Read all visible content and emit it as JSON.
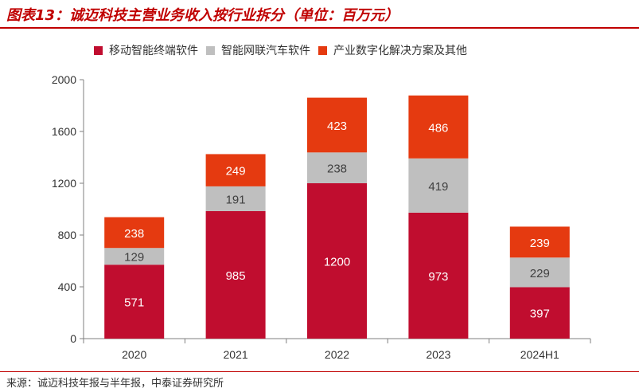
{
  "title": "图表13：诚迈科技主营业务收入按行业拆分（单位：百万元）",
  "source": "来源：诚迈科技年报与半年报，中泰证券研究所",
  "colors": {
    "mobile": "#c00d2f",
    "auto": "#bfbfbf",
    "digital": "#e53a10",
    "accent": "#c00000"
  },
  "chart_data": {
    "type": "bar",
    "stacked": true,
    "categories": [
      "2020",
      "2021",
      "2022",
      "2023",
      "2024H1"
    ],
    "series": [
      {
        "name": "移动智能终端软件",
        "values": [
          571,
          985,
          1200,
          973,
          397
        ]
      },
      {
        "name": "智能网联汽车软件",
        "values": [
          129,
          191,
          238,
          419,
          229
        ]
      },
      {
        "name": "产业数字化解决方案及其他",
        "values": [
          238,
          249,
          423,
          486,
          239
        ]
      }
    ],
    "ylim": [
      0,
      2000
    ],
    "yticks": [
      "0",
      "400",
      "800",
      "1200",
      "1600",
      "2000"
    ],
    "legend_position": "top",
    "grid": false
  }
}
